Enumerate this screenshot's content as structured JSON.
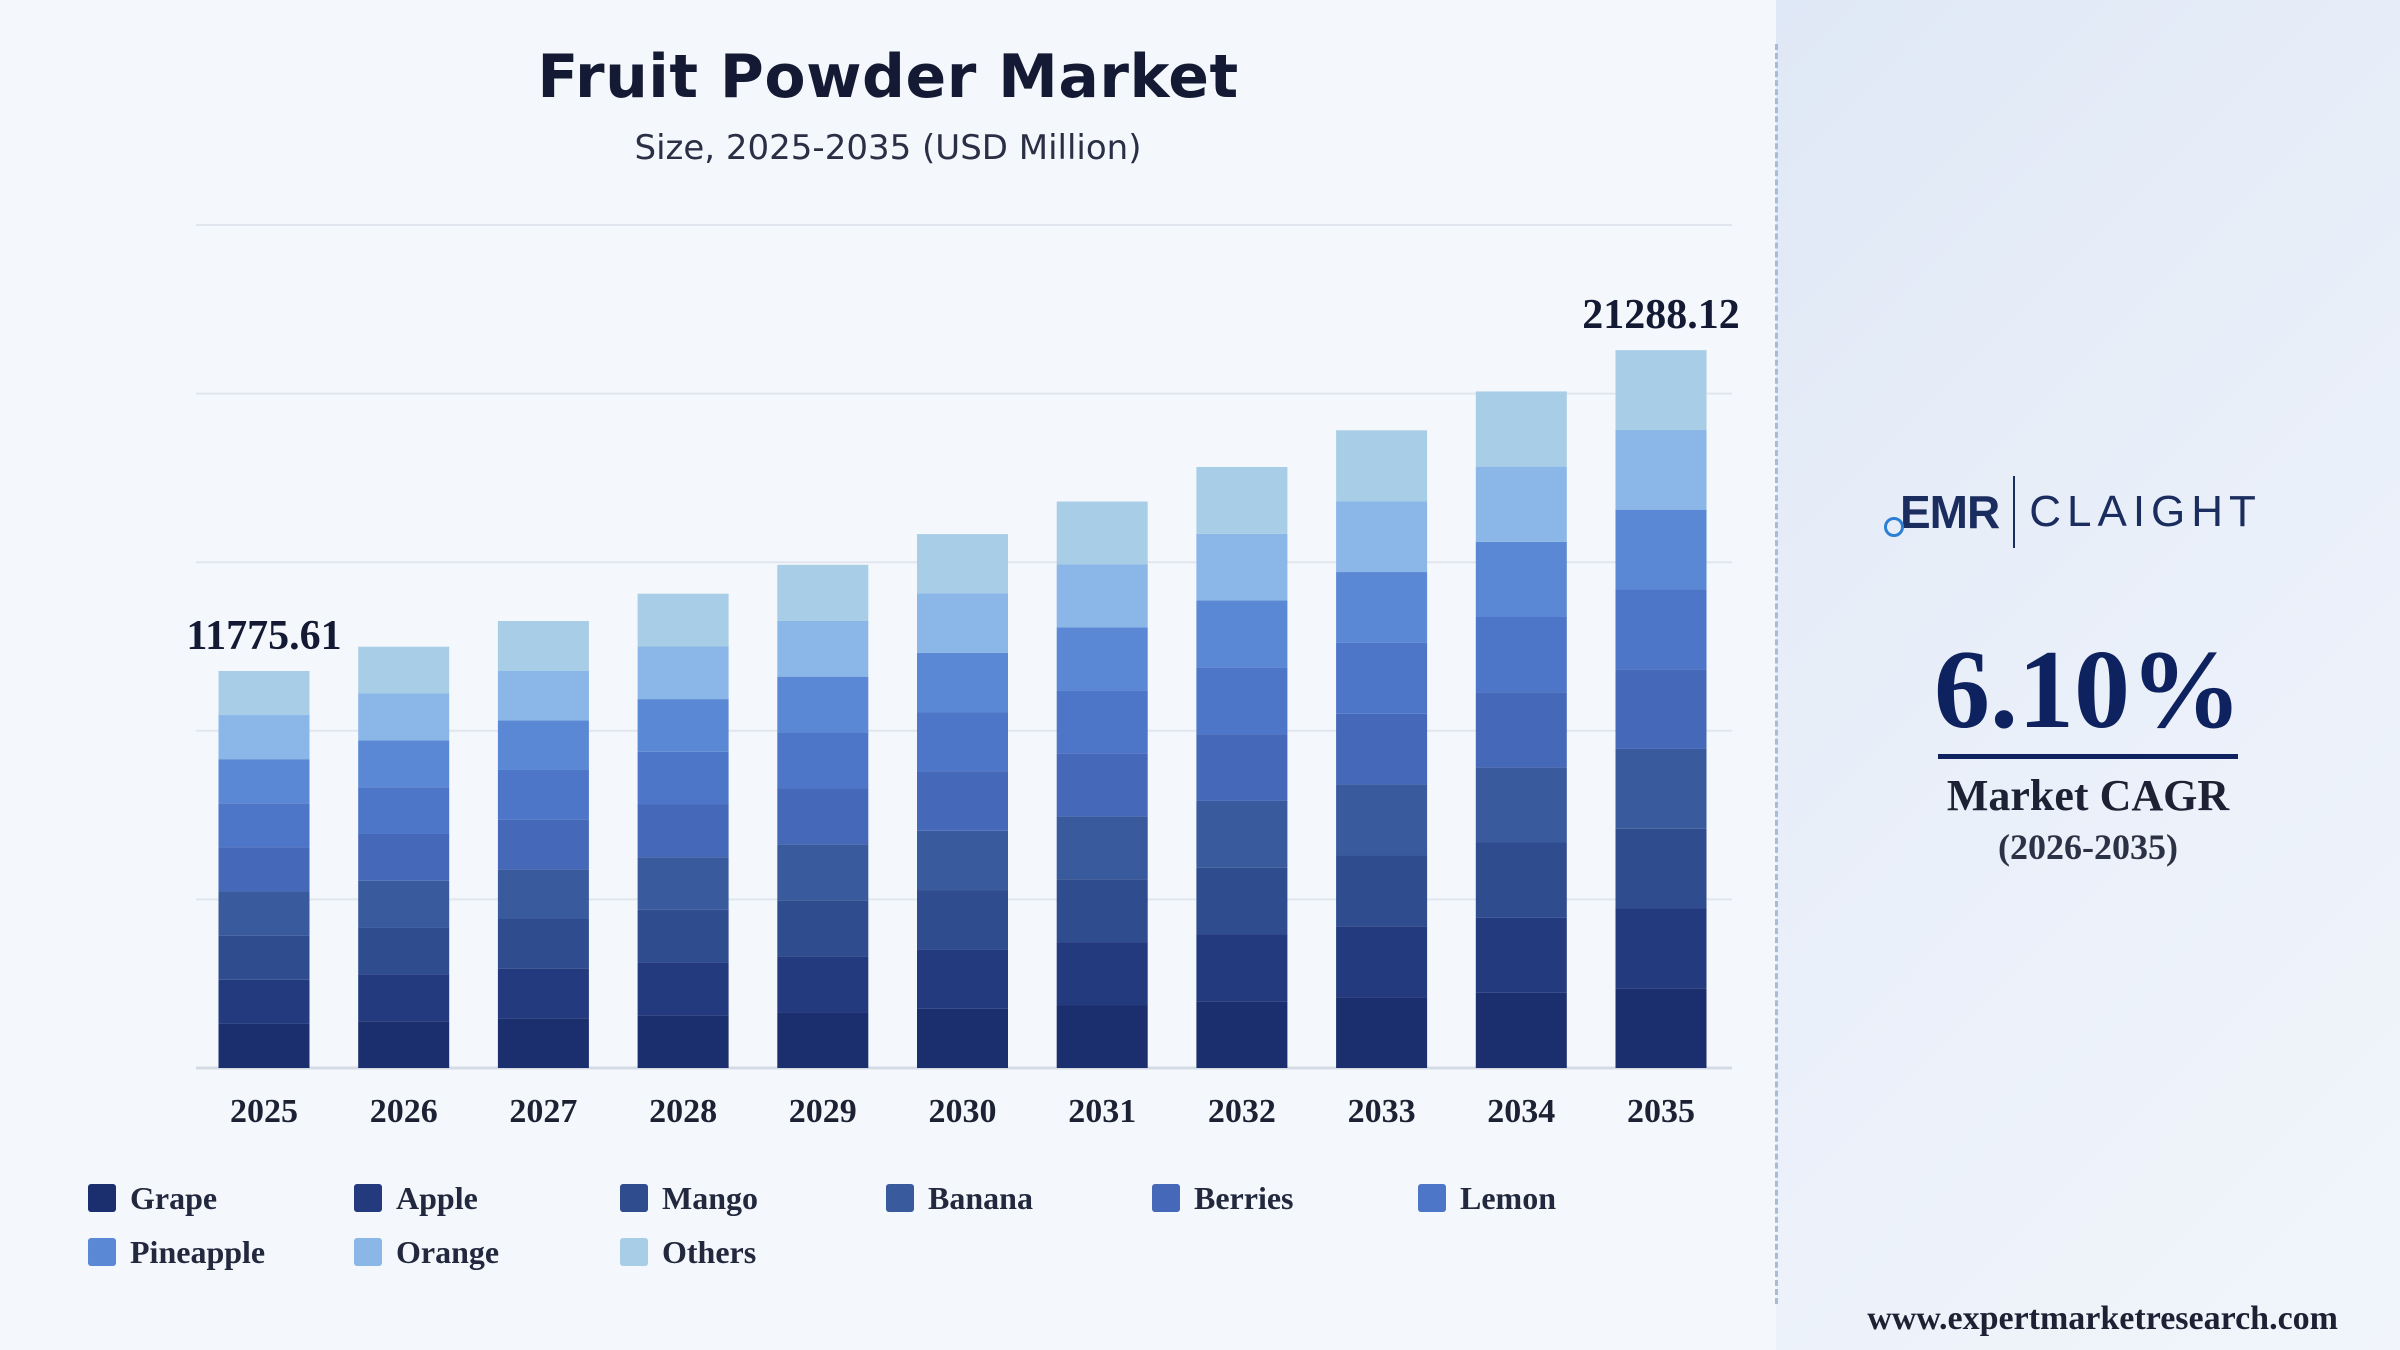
{
  "chart_data": {
    "type": "bar",
    "stacked": true,
    "title": "Fruit Powder Market",
    "subtitle": "Size, 2025-2035 (USD Million)",
    "xlabel": "",
    "ylabel": "",
    "ylim": [
      0,
      25000
    ],
    "grid": true,
    "legend_position": "bottom",
    "categories": [
      "2025",
      "2026",
      "2027",
      "2028",
      "2029",
      "2030",
      "2031",
      "2032",
      "2033",
      "2034",
      "2035"
    ],
    "totals": [
      11775.61,
      12494,
      13256,
      14065,
      14923,
      15833,
      16799,
      17824,
      18911,
      20064,
      21288.12
    ],
    "annotations": [
      {
        "category": "2025",
        "text": "11775.61"
      },
      {
        "category": "2035",
        "text": "21288.12"
      }
    ],
    "series": [
      {
        "name": "Grape",
        "color": "#1b2e6e",
        "values": [
          1308,
          1388,
          1473,
          1563,
          1658,
          1759,
          1867,
          1980,
          2101,
          2229,
          2366
        ]
      },
      {
        "name": "Apple",
        "color": "#233a7e",
        "values": [
          1308,
          1388,
          1473,
          1563,
          1658,
          1759,
          1867,
          1980,
          2101,
          2229,
          2365
        ]
      },
      {
        "name": "Mango",
        "color": "#2f4c8e",
        "values": [
          1309,
          1388,
          1473,
          1563,
          1658,
          1759,
          1866,
          1981,
          2101,
          2229,
          2365
        ]
      },
      {
        "name": "Banana",
        "color": "#3a5a9e",
        "values": [
          1308,
          1388,
          1473,
          1563,
          1658,
          1759,
          1867,
          1980,
          2102,
          2230,
          2366
        ]
      },
      {
        "name": "Berries",
        "color": "#4568b8",
        "values": [
          1309,
          1388,
          1473,
          1562,
          1658,
          1760,
          1866,
          1981,
          2101,
          2229,
          2365
        ]
      },
      {
        "name": "Lemon",
        "color": "#4d75c8",
        "values": [
          1308,
          1388,
          1473,
          1563,
          1658,
          1759,
          1867,
          1980,
          2101,
          2229,
          2365
        ]
      },
      {
        "name": "Pineapple",
        "color": "#5a88d4",
        "values": [
          1309,
          1389,
          1472,
          1563,
          1658,
          1759,
          1866,
          1981,
          2101,
          2230,
          2366
        ]
      },
      {
        "name": "Orange",
        "color": "#8ab6e8",
        "values": [
          1308,
          1389,
          1473,
          1562,
          1659,
          1760,
          1867,
          1980,
          2101,
          2229,
          2365
        ]
      },
      {
        "name": "Others",
        "color": "#a8cde6",
        "values": [
          1308,
          1388,
          1473,
          1563,
          1658,
          1759,
          1866,
          1981,
          2102,
          2230,
          2365
        ]
      }
    ]
  },
  "colors": {
    "grid": "#e1e6ee",
    "axis": "#d5dbe5",
    "tick_label": "#1c2233",
    "annotation": "#141a33"
  },
  "brand": {
    "logo_left": "EMR",
    "logo_right": "CLAIGHT",
    "cagr_value": "6.10%",
    "cagr_label": "Market CAGR",
    "cagr_period": "(2026-2035)",
    "website": "www.expertmarketresearch.com"
  }
}
